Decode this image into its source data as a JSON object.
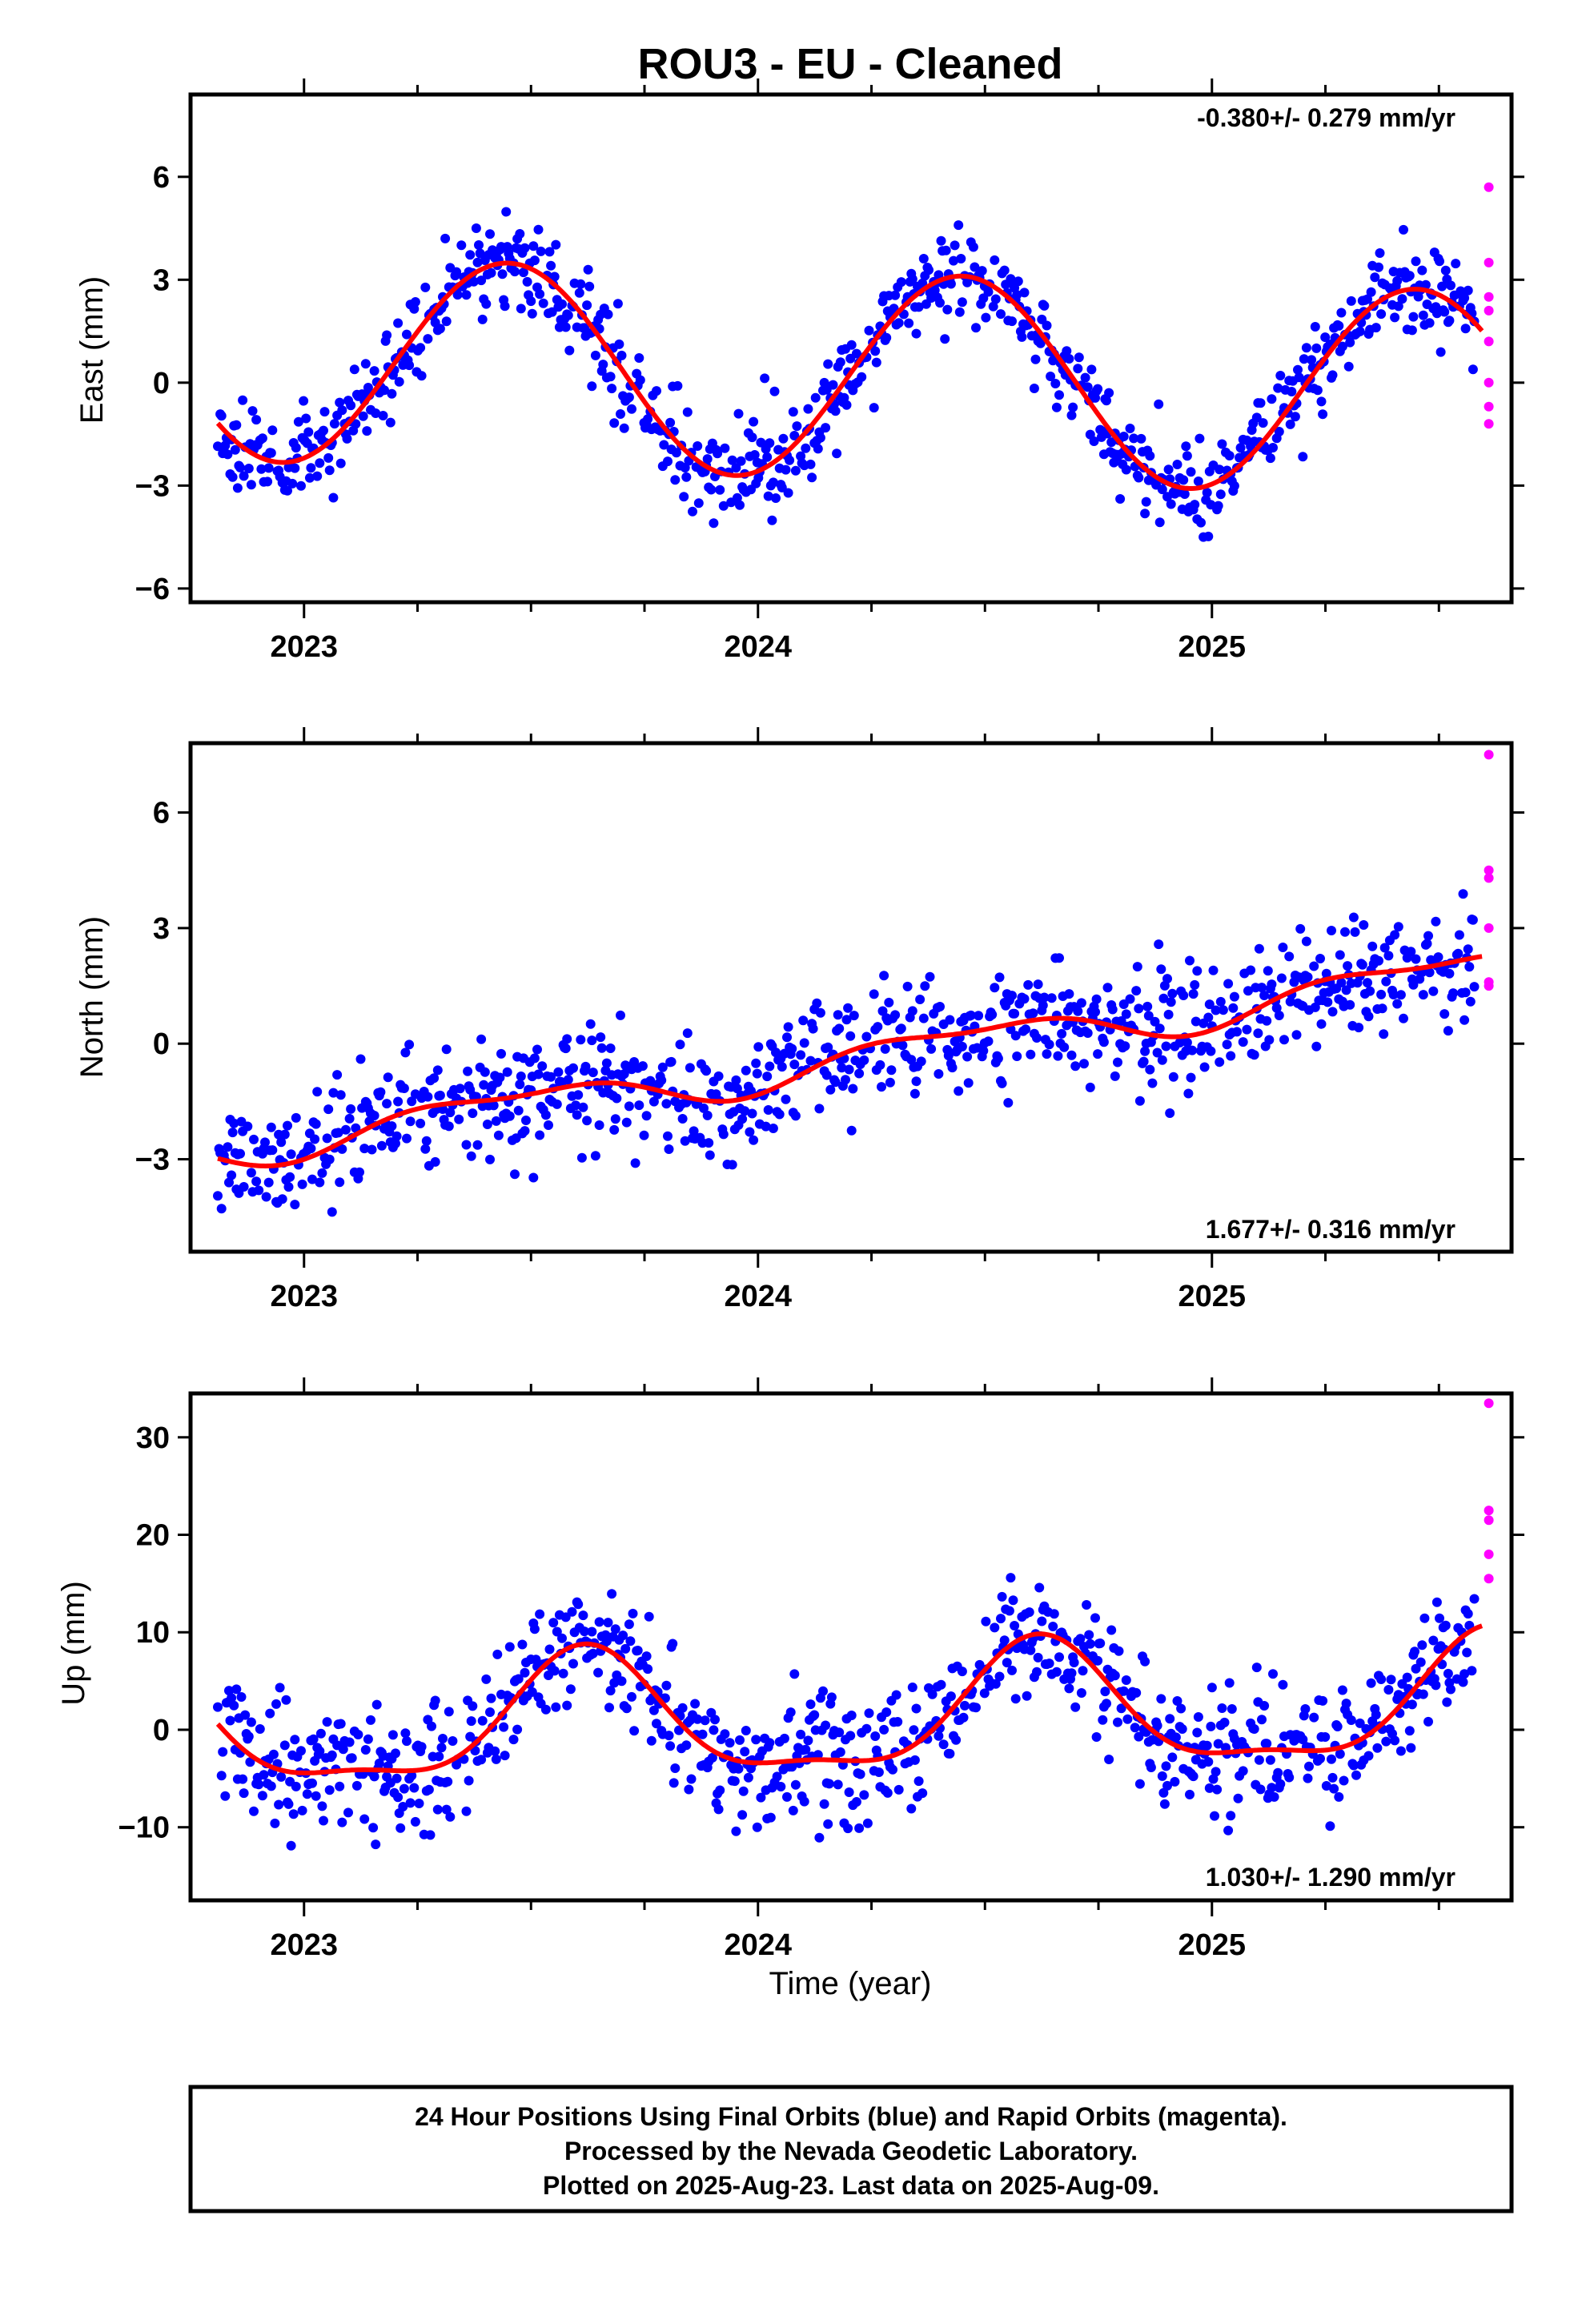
{
  "figure": {
    "title": "ROU3  - EU - Cleaned",
    "xlabel": "Time (year)",
    "footer": [
      "24 Hour Positions Using Final Orbits (blue) and Rapid Orbits (magenta).",
      "Processed by the Nevada Geodetic Laboratory.",
      "Plotted on 2025-Aug-23. Last data on 2025-Aug-09."
    ],
    "colors": {
      "final": "#0000ff",
      "rapid": "#ff00ff",
      "model": "#ff0000"
    }
  },
  "chart_data": [
    {
      "type": "scatter",
      "ylabel": "East (mm)",
      "rate_label": "-0.380+/- 0.279 mm/yr",
      "rate_position": "top-right",
      "xlim": [
        2022.75,
        2025.66
      ],
      "ylim": [
        -6.4,
        8.4
      ],
      "x_ticks": [
        2023,
        2024,
        2025
      ],
      "y_ticks": [
        -6,
        -3,
        0,
        3,
        6
      ],
      "model": {
        "mean": 0.2,
        "rate": -0.38,
        "amp1": 3.0,
        "phase1_peak": 2023.45,
        "amp2": 0.0,
        "phase2_peak": 2023.0
      },
      "noise_sd": 0.7,
      "rapid_points": [
        5.7,
        3.5,
        2.5,
        2.1,
        1.2,
        0.0,
        -0.7,
        -1.2
      ],
      "seed": 11
    },
    {
      "type": "scatter",
      "ylabel": "North (mm)",
      "rate_label": "1.677+/- 0.316 mm/yr",
      "rate_position": "bottom-right",
      "xlim": [
        2022.75,
        2025.66
      ],
      "ylim": [
        -5.4,
        7.8
      ],
      "x_ticks": [
        2023,
        2024,
        2025
      ],
      "y_ticks": [
        -3,
        0,
        3,
        6
      ],
      "model": {
        "mean": -0.4,
        "rate": 1.677,
        "amp1": 0.45,
        "phase1_peak": 2023.45,
        "amp2": 0.2,
        "phase2_peak": 2023.2
      },
      "noise_sd": 0.75,
      "rapid_points": [
        7.5,
        4.5,
        4.3,
        3.0,
        1.6,
        1.5
      ],
      "seed": 23
    },
    {
      "type": "scatter",
      "ylabel": "Up (mm)",
      "rate_label": "1.030+/- 1.290 mm/yr",
      "rate_position": "bottom-right",
      "xlim": [
        2022.75,
        2025.66
      ],
      "ylim": [
        -17.5,
        34.5
      ],
      "x_ticks": [
        2023,
        2024,
        2025
      ],
      "y_ticks": [
        -10,
        0,
        10,
        20,
        30
      ],
      "model": {
        "mean": 1.2,
        "rate": 1.03,
        "amp1": 6.2,
        "phase1_peak": 2023.62,
        "amp2": 2.0,
        "phase2_peak": 2023.62
      },
      "noise_sd": 3.2,
      "rapid_points": [
        33.5,
        22.5,
        21.5,
        18.0,
        15.5
      ],
      "seed": 37
    }
  ]
}
